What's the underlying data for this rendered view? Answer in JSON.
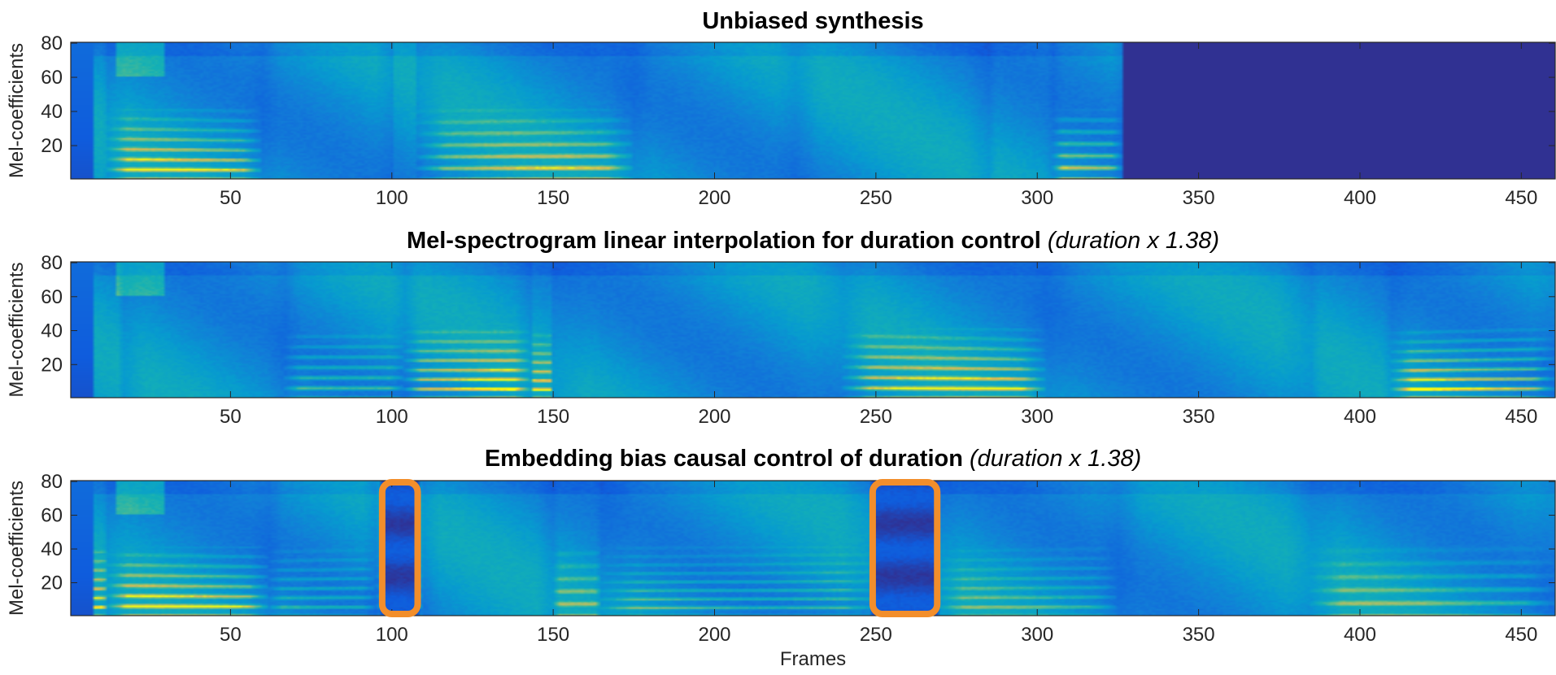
{
  "chart_data": [
    {
      "type": "heatmap",
      "title": "Unbiased synthesis",
      "title_note": "",
      "ylabel": "Mel-coefficients",
      "xlabel": "",
      "xlim": [
        1,
        460
      ],
      "ylim": [
        1,
        80
      ],
      "xticks": [
        50,
        100,
        150,
        200,
        250,
        300,
        350,
        400,
        450
      ],
      "yticks": [
        20,
        40,
        60,
        80
      ],
      "colormap": "parula",
      "signal_end_frame": 326,
      "segment_boundaries": [
        12,
        60,
        100,
        108,
        175,
        225,
        285,
        305
      ],
      "highlights": []
    },
    {
      "type": "heatmap",
      "title": "Mel-spectrogram linear interpolation for duration control",
      "title_note": "(duration x 1.38)",
      "ylabel": "Mel-coefficients",
      "xlabel": "",
      "xlim": [
        1,
        460
      ],
      "ylim": [
        1,
        80
      ],
      "xticks": [
        50,
        100,
        150,
        200,
        250,
        300,
        350,
        400,
        450
      ],
      "yticks": [
        20,
        40,
        60,
        80
      ],
      "colormap": "parula",
      "signal_end_frame": 460,
      "segment_boundaries": [
        17,
        67,
        104,
        143,
        150,
        240,
        303,
        385,
        410
      ],
      "highlights": []
    },
    {
      "type": "heatmap",
      "title": "Embedding bias causal control of duration",
      "title_note": "(duration x 1.38)",
      "ylabel": "Mel-coefficients",
      "xlabel": "Frames",
      "xlim": [
        1,
        460
      ],
      "ylim": [
        1,
        80
      ],
      "xticks": [
        50,
        100,
        150,
        200,
        250,
        300,
        350,
        400,
        450
      ],
      "yticks": [
        20,
        40,
        60,
        80
      ],
      "colormap": "parula",
      "signal_end_frame": 460,
      "segment_boundaries": [
        12,
        62,
        95,
        110,
        150,
        165,
        250,
        270,
        325,
        385
      ],
      "highlights": [
        {
          "x_start": 97,
          "x_end": 108,
          "color": "#F28E2B"
        },
        {
          "x_start": 249,
          "x_end": 269,
          "color": "#F28E2B"
        }
      ]
    }
  ]
}
